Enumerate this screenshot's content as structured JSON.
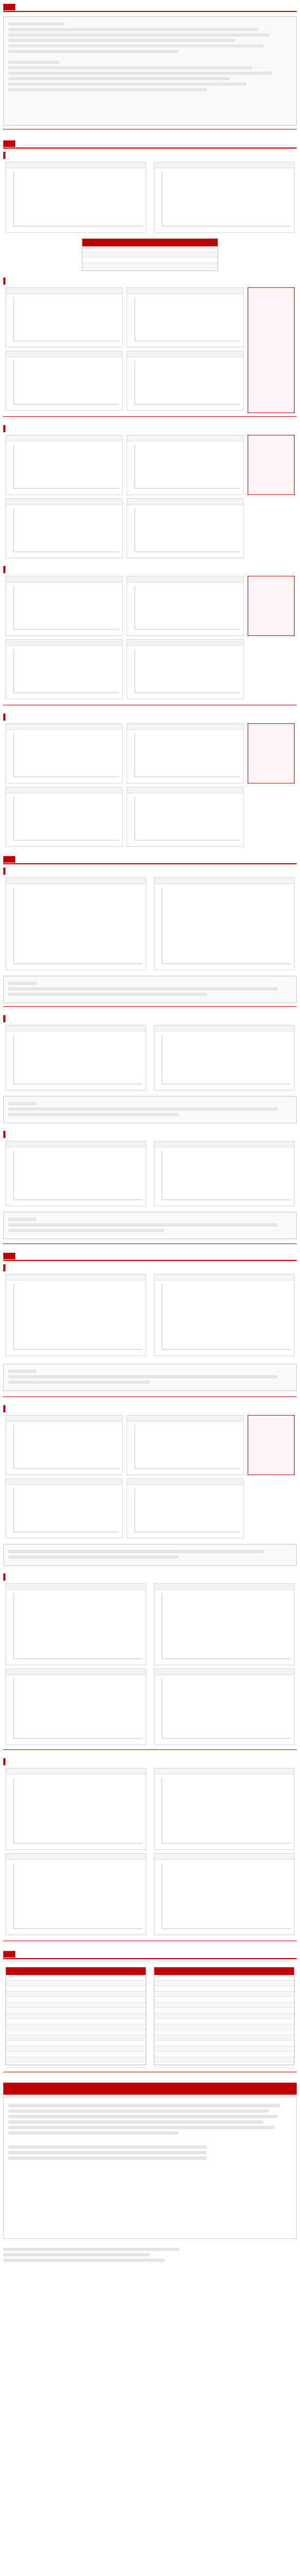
{
  "header": {
    "section_number": "",
    "title": ""
  },
  "summary": {
    "heading": "",
    "lines": []
  },
  "sections": [
    {
      "id": "s1",
      "title": ""
    },
    {
      "id": "s2",
      "title": ""
    },
    {
      "id": "s3",
      "title": ""
    },
    {
      "id": "s4",
      "title": ""
    }
  ],
  "subsections": [],
  "comments": [],
  "tables": [],
  "disclaimer": {
    "heading": "",
    "body": ""
  },
  "contacts": {
    "lines": []
  },
  "colors": {
    "accent": "#c00000",
    "series_orange": "#f39c12",
    "series_blue": "#1f4e79",
    "series_gray": "#7f7f7f"
  },
  "chart_data": []
}
